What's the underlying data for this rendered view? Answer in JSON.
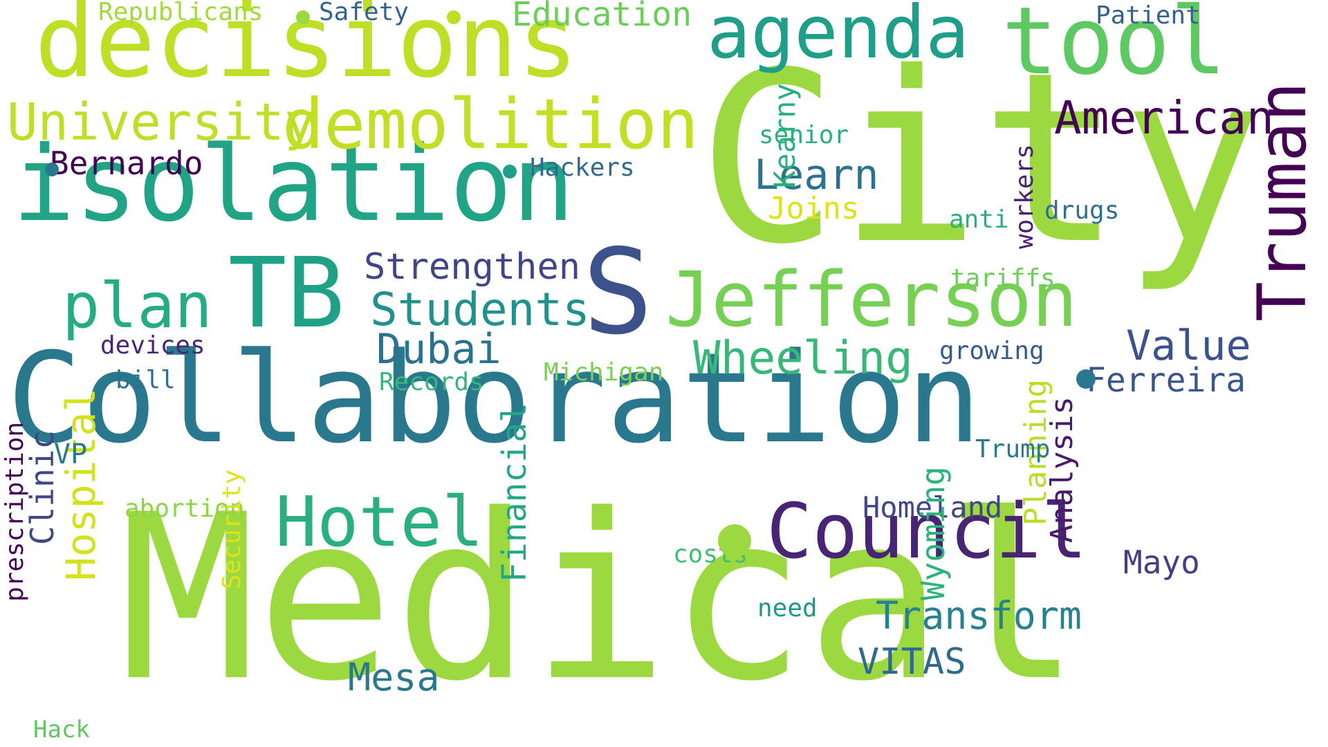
{
  "words": [
    {
      "text": "Medical",
      "color": "#9cd941"
    },
    {
      "text": "City",
      "color": "#9cd941"
    },
    {
      "text": "Collaboration",
      "color": "#2a788e"
    },
    {
      "text": "isolation",
      "color": "#21a386"
    },
    {
      "text": "decisions",
      "color": "#bddf26"
    },
    {
      "text": "tool",
      "color": "#5ec962"
    },
    {
      "text": "agenda",
      "color": "#1f9e89"
    },
    {
      "text": "TB",
      "color": "#1fa187"
    },
    {
      "text": "S",
      "color": "#3b528b"
    },
    {
      "text": "Jefferson",
      "color": "#75d054"
    },
    {
      "text": "Council",
      "color": "#482475"
    },
    {
      "text": "Truman",
      "color": "#440154"
    },
    {
      "text": "demolition",
      "color": "#c2df23"
    },
    {
      "text": "Hotel",
      "color": "#2ab07f"
    },
    {
      "text": "plan",
      "color": "#25ac82"
    },
    {
      "text": "University",
      "color": "#bddf26"
    },
    {
      "text": "American",
      "color": "#440154"
    },
    {
      "text": "Students",
      "color": "#21918c"
    },
    {
      "text": "Wheeling",
      "color": "#37b878"
    },
    {
      "text": "Dubai",
      "color": "#2c728e"
    },
    {
      "text": "Value",
      "color": "#3b528b"
    },
    {
      "text": "Transform",
      "color": "#26828e"
    },
    {
      "text": "Strengthen",
      "color": "#414487"
    },
    {
      "text": "Learn",
      "color": "#2c728e"
    },
    {
      "text": "Bernardo",
      "color": "#440154"
    },
    {
      "text": "Mesa",
      "color": "#2a788e"
    },
    {
      "text": "Education",
      "color": "#6ccd5a"
    },
    {
      "text": "Hospital",
      "color": "#d2e21b"
    },
    {
      "text": "Ferreira",
      "color": "#39568c"
    },
    {
      "text": "VITAS",
      "color": "#31688e"
    },
    {
      "text": "Financial",
      "color": "#22a884"
    },
    {
      "text": "Homeland",
      "color": "#404688"
    },
    {
      "text": "Mayo",
      "color": "#433e85"
    },
    {
      "text": "Clinic",
      "color": "#414487"
    },
    {
      "text": "Wyoming",
      "color": "#2db27d"
    },
    {
      "text": "Kearny",
      "color": "#29af7f"
    },
    {
      "text": "Analysis",
      "color": "#481a6c"
    },
    {
      "text": "Planning",
      "color": "#bade28"
    },
    {
      "text": "Joins",
      "color": "#dde318"
    },
    {
      "text": "Michigan",
      "color": "#7ad151"
    },
    {
      "text": "Records",
      "color": "#35b779"
    },
    {
      "text": "Republicans",
      "color": "#a2da37"
    },
    {
      "text": "Safety",
      "color": "#33638d"
    },
    {
      "text": "Patient",
      "color": "#33638d"
    },
    {
      "text": "Hackers",
      "color": "#306a8e"
    },
    {
      "text": "senior",
      "color": "#2ab07f"
    },
    {
      "text": "drugs",
      "color": "#2e6e8e"
    },
    {
      "text": "anti",
      "color": "#2ab07f"
    },
    {
      "text": "tariffs",
      "color": "#6ccd5a"
    },
    {
      "text": "growing",
      "color": "#38598c"
    },
    {
      "text": "devices",
      "color": "#482677"
    },
    {
      "text": "bill",
      "color": "#2d708e"
    },
    {
      "text": "VP",
      "color": "#2a788e"
    },
    {
      "text": "abortion",
      "color": "#8bd646"
    },
    {
      "text": "Trump",
      "color": "#29798e"
    },
    {
      "text": "costs",
      "color": "#40bd72"
    },
    {
      "text": "need",
      "color": "#1f988b"
    },
    {
      "text": "workers",
      "color": "#482173"
    },
    {
      "text": "prescription",
      "color": "#440154"
    },
    {
      "text": "Security",
      "color": "#dde318"
    },
    {
      "text": "Hack",
      "color": "#5ec962"
    }
  ],
  "dots": [
    {
      "color": "#9cd941"
    },
    {
      "color": "#bddf26"
    },
    {
      "color": "#2a788e"
    },
    {
      "color": "#1f9e89"
    },
    {
      "color": "#9cd941"
    },
    {
      "color": "#2a788e"
    }
  ]
}
